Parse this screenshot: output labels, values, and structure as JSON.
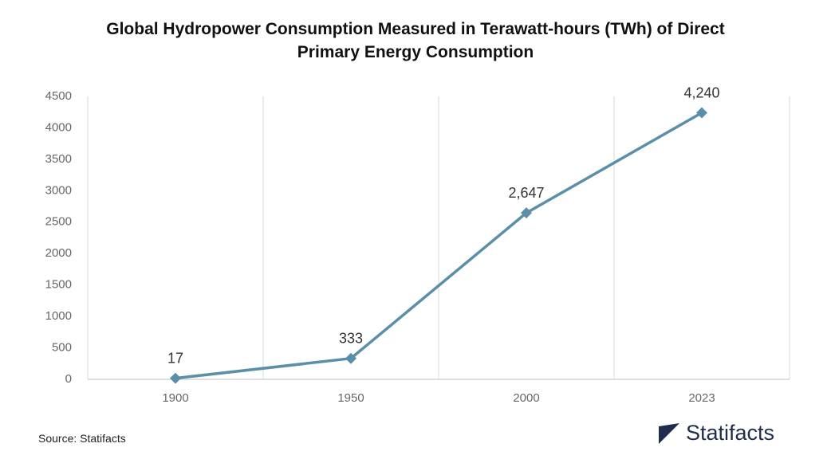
{
  "chart_data": {
    "type": "line",
    "title": "Global Hydropower Consumption Measured in Terawatt-hours (TWh) of Direct Primary Energy Consumption",
    "categories": [
      "1900",
      "1950",
      "2000",
      "2023"
    ],
    "values": [
      17,
      333,
      2647,
      4240
    ],
    "value_labels": [
      "17",
      "333",
      "2,647",
      "4,240"
    ],
    "color": "#5b8ea9",
    "ylim": [
      0,
      4500
    ],
    "yticks": [
      0,
      500,
      1000,
      1500,
      2000,
      2500,
      3000,
      3500,
      4000,
      4500
    ],
    "grid": true
  },
  "footer": {
    "source": "Source: Statifacts",
    "brand": "Statifacts"
  }
}
